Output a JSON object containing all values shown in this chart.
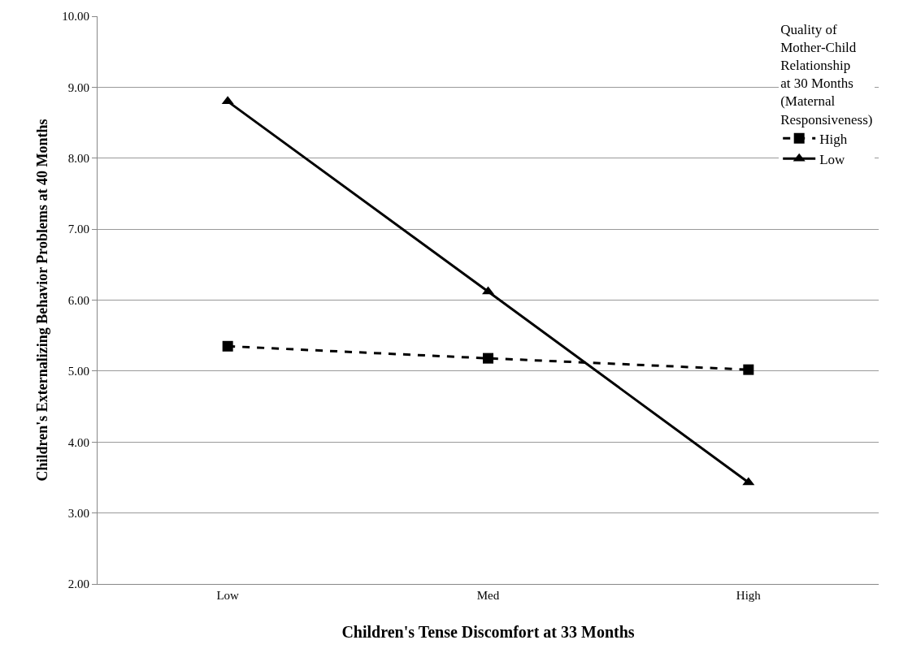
{
  "chart_data": {
    "type": "line",
    "categories": [
      "Low",
      "Med",
      "High"
    ],
    "series": [
      {
        "name": "High",
        "color": "#000000",
        "values": [
          5.35,
          5.18,
          5.02
        ],
        "marker": "square",
        "line_style": "dashed"
      },
      {
        "name": "Low",
        "color": "#000000",
        "values": [
          8.8,
          6.12,
          3.43
        ],
        "marker": "triangle",
        "line_style": "solid"
      }
    ],
    "xlabel": "Children's Tense Discomfort at 33 Months",
    "ylabel": "Children's Externalizing Behavior Problems at 40 Months",
    "legend_title": "Quality of\nMother-Child\nRelationship\nat 30 Months\n(Maternal\nResponsiveness)",
    "ylim": [
      2,
      10
    ],
    "yticks": [
      {
        "value": 2,
        "label": "2.00"
      },
      {
        "value": 3,
        "label": "3.00"
      },
      {
        "value": 4,
        "label": "4.00"
      },
      {
        "value": 5,
        "label": "5.00"
      },
      {
        "value": 6,
        "label": "6.00"
      },
      {
        "value": 7,
        "label": "7.00"
      },
      {
        "value": 8,
        "label": "8.00"
      },
      {
        "value": 9,
        "label": "9.00"
      },
      {
        "value": 10,
        "label": "10.00"
      }
    ],
    "grid": "y",
    "legend": "top right"
  }
}
